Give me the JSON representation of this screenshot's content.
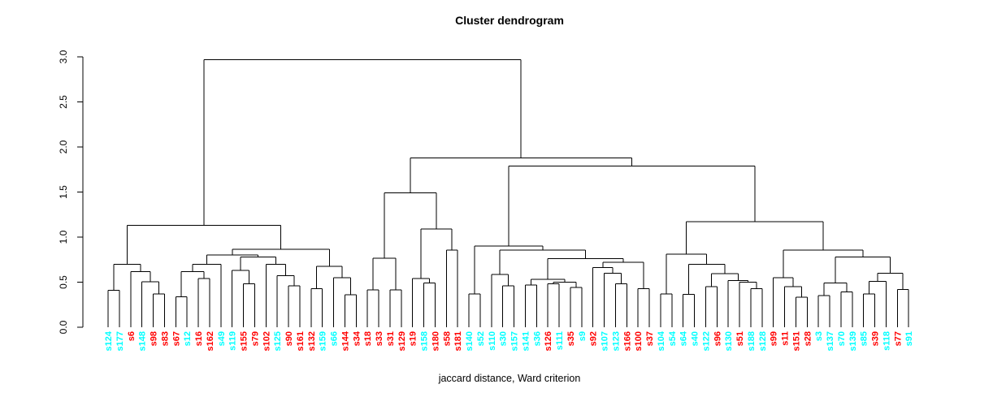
{
  "page": {
    "title": "Cluster dendrogram"
  },
  "chart_data": {
    "type": "dendrogram",
    "title": "Cluster dendrogram",
    "xlabel": "jaccard distance, Ward criterion",
    "ylabel": "",
    "ylim": [
      0.0,
      3.0
    ],
    "yticks": [
      "0.0",
      "0.5",
      "1.0",
      "1.5",
      "2.0",
      "2.5",
      "3.0"
    ],
    "grid": false,
    "line_color": "#000000",
    "group_colors": {
      "group1": "#00FFFF",
      "group2": "#FF0000"
    },
    "leaves": [
      {
        "label": "s124",
        "color": "#00FFFF"
      },
      {
        "label": "s177",
        "color": "#00FFFF"
      },
      {
        "label": "s6",
        "color": "#FF0000"
      },
      {
        "label": "s148",
        "color": "#00FFFF"
      },
      {
        "label": "s98",
        "color": "#FF0000"
      },
      {
        "label": "s83",
        "color": "#FF0000"
      },
      {
        "label": "s67",
        "color": "#FF0000"
      },
      {
        "label": "s12",
        "color": "#00FFFF"
      },
      {
        "label": "s16",
        "color": "#FF0000"
      },
      {
        "label": "s162",
        "color": "#FF0000"
      },
      {
        "label": "s49",
        "color": "#00FFFF"
      },
      {
        "label": "s119",
        "color": "#00FFFF"
      },
      {
        "label": "s155",
        "color": "#FF0000"
      },
      {
        "label": "s79",
        "color": "#FF0000"
      },
      {
        "label": "s102",
        "color": "#FF0000"
      },
      {
        "label": "s125",
        "color": "#00FFFF"
      },
      {
        "label": "s90",
        "color": "#FF0000"
      },
      {
        "label": "s161",
        "color": "#FF0000"
      },
      {
        "label": "s132",
        "color": "#FF0000"
      },
      {
        "label": "s159",
        "color": "#00FFFF"
      },
      {
        "label": "s66",
        "color": "#00FFFF"
      },
      {
        "label": "s144",
        "color": "#FF0000"
      },
      {
        "label": "s34",
        "color": "#FF0000"
      },
      {
        "label": "s18",
        "color": "#FF0000"
      },
      {
        "label": "s33",
        "color": "#FF0000"
      },
      {
        "label": "s31",
        "color": "#FF0000"
      },
      {
        "label": "s129",
        "color": "#FF0000"
      },
      {
        "label": "s19",
        "color": "#FF0000"
      },
      {
        "label": "s158",
        "color": "#00FFFF"
      },
      {
        "label": "s180",
        "color": "#FF0000"
      },
      {
        "label": "s58",
        "color": "#FF0000"
      },
      {
        "label": "s181",
        "color": "#FF0000"
      },
      {
        "label": "s140",
        "color": "#00FFFF"
      },
      {
        "label": "s52",
        "color": "#00FFFF"
      },
      {
        "label": "s110",
        "color": "#00FFFF"
      },
      {
        "label": "s30",
        "color": "#00FFFF"
      },
      {
        "label": "s157",
        "color": "#00FFFF"
      },
      {
        "label": "s141",
        "color": "#00FFFF"
      },
      {
        "label": "s36",
        "color": "#00FFFF"
      },
      {
        "label": "s126",
        "color": "#FF0000"
      },
      {
        "label": "s111",
        "color": "#00FFFF"
      },
      {
        "label": "s35",
        "color": "#FF0000"
      },
      {
        "label": "s9",
        "color": "#00FFFF"
      },
      {
        "label": "s92",
        "color": "#FF0000"
      },
      {
        "label": "s107",
        "color": "#00FFFF"
      },
      {
        "label": "s123",
        "color": "#00FFFF"
      },
      {
        "label": "s166",
        "color": "#FF0000"
      },
      {
        "label": "s100",
        "color": "#FF0000"
      },
      {
        "label": "s37",
        "color": "#FF0000"
      },
      {
        "label": "s104",
        "color": "#00FFFF"
      },
      {
        "label": "s54",
        "color": "#00FFFF"
      },
      {
        "label": "s64",
        "color": "#00FFFF"
      },
      {
        "label": "s40",
        "color": "#00FFFF"
      },
      {
        "label": "s122",
        "color": "#00FFFF"
      },
      {
        "label": "s96",
        "color": "#FF0000"
      },
      {
        "label": "s130",
        "color": "#00FFFF"
      },
      {
        "label": "s51",
        "color": "#FF0000"
      },
      {
        "label": "s188",
        "color": "#00FFFF"
      },
      {
        "label": "s128",
        "color": "#00FFFF"
      },
      {
        "label": "s99",
        "color": "#FF0000"
      },
      {
        "label": "s11",
        "color": "#FF0000"
      },
      {
        "label": "s151",
        "color": "#FF0000"
      },
      {
        "label": "s28",
        "color": "#FF0000"
      },
      {
        "label": "s3",
        "color": "#00FFFF"
      },
      {
        "label": "s137",
        "color": "#00FFFF"
      },
      {
        "label": "s70",
        "color": "#00FFFF"
      },
      {
        "label": "s139",
        "color": "#00FFFF"
      },
      {
        "label": "s85",
        "color": "#00FFFF"
      },
      {
        "label": "s39",
        "color": "#FF0000"
      },
      {
        "label": "s118",
        "color": "#00FFFF"
      },
      {
        "label": "s77",
        "color": "#FF0000"
      },
      {
        "label": "s91",
        "color": "#00FFFF"
      }
    ],
    "tree": {
      "h": 2.97,
      "c": [
        {
          "h": 1.13,
          "c": [
            {
              "h": 0.7,
              "c": [
                {
                  "h": 0.41,
                  "c": [
                    "s124",
                    "s177"
                  ]
                },
                {
                  "h": 0.615,
                  "c": [
                    "s6",
                    {
                      "h": 0.505,
                      "c": [
                        "s148",
                        {
                          "h": 0.37,
                          "c": [
                            "s98",
                            "s83"
                          ]
                        }
                      ]
                    }
                  ]
                }
              ]
            },
            {
              "h": 0.865,
              "c": [
                {
                  "h": 0.8,
                  "c": [
                    {
                      "h": 0.7,
                      "c": [
                        {
                          "h": 0.615,
                          "c": [
                            {
                              "h": 0.34,
                              "c": [
                                "s67",
                                "s12"
                              ]
                            },
                            {
                              "h": 0.54,
                              "c": [
                                "s16",
                                "s162"
                              ]
                            }
                          ]
                        },
                        "s49"
                      ]
                    },
                    {
                      "h": 0.78,
                      "c": [
                        {
                          "h": 0.63,
                          "c": [
                            "s119",
                            {
                              "h": 0.48,
                              "c": [
                                "s155",
                                "s79"
                              ]
                            }
                          ]
                        },
                        {
                          "h": 0.7,
                          "c": [
                            "s102",
                            {
                              "h": 0.57,
                              "c": [
                                "s125",
                                {
                                  "h": 0.46,
                                  "c": [
                                    "s90",
                                    "s161"
                                  ]
                                }
                              ]
                            }
                          ]
                        }
                      ]
                    }
                  ]
                },
                {
                  "h": 0.675,
                  "c": [
                    {
                      "h": 0.43,
                      "c": [
                        "s132",
                        "s159"
                      ]
                    },
                    {
                      "h": 0.55,
                      "c": [
                        "s66",
                        {
                          "h": 0.36,
                          "c": [
                            "s144",
                            "s34"
                          ]
                        }
                      ]
                    }
                  ]
                }
              ]
            }
          ]
        },
        {
          "h": 1.88,
          "c": [
            {
              "h": 1.49,
              "c": [
                {
                  "h": 0.765,
                  "c": [
                    {
                      "h": 0.415,
                      "c": [
                        "s18",
                        "s33"
                      ]
                    },
                    {
                      "h": 0.415,
                      "c": [
                        "s31",
                        "s129"
                      ]
                    }
                  ]
                },
                {
                  "h": 1.09,
                  "c": [
                    {
                      "h": 0.54,
                      "c": [
                        "s19",
                        {
                          "h": 0.49,
                          "c": [
                            "s158",
                            "s180"
                          ]
                        }
                      ]
                    },
                    {
                      "h": 0.855,
                      "c": [
                        "s58",
                        "s181"
                      ]
                    }
                  ]
                }
              ]
            },
            {
              "h": 1.79,
              "c": [
                {
                  "h": 0.9,
                  "c": [
                    {
                      "h": 0.37,
                      "c": [
                        "s140",
                        "s52"
                      ]
                    },
                    {
                      "h": 0.855,
                      "c": [
                        {
                          "h": 0.585,
                          "c": [
                            "s110",
                            {
                              "h": 0.46,
                              "c": [
                                "s30",
                                "s157"
                              ]
                            }
                          ]
                        },
                        {
                          "h": 0.76,
                          "c": [
                            {
                              "h": 0.53,
                              "c": [
                                {
                                  "h": 0.47,
                                  "c": [
                                    "s141",
                                    "s36"
                                  ]
                                },
                                {
                                  "h": 0.5,
                                  "c": [
                                    {
                                      "h": 0.48,
                                      "c": [
                                        "s126",
                                        "s111"
                                      ]
                                    },
                                    {
                                      "h": 0.44,
                                      "c": [
                                        "s35",
                                        "s9"
                                      ]
                                    }
                                  ]
                                }
                              ]
                            },
                            {
                              "h": 0.72,
                              "c": [
                                {
                                  "h": 0.66,
                                  "c": [
                                    "s92",
                                    {
                                      "h": 0.6,
                                      "c": [
                                        "s107",
                                        {
                                          "h": 0.48,
                                          "c": [
                                            "s123",
                                            "s166"
                                          ]
                                        }
                                      ]
                                    }
                                  ]
                                },
                                {
                                  "h": 0.43,
                                  "c": [
                                    "s100",
                                    "s37"
                                  ]
                                }
                              ]
                            }
                          ]
                        }
                      ]
                    }
                  ]
                },
                {
                  "h": 1.17,
                  "c": [
                    {
                      "h": 0.81,
                      "c": [
                        {
                          "h": 0.37,
                          "c": [
                            "s104",
                            "s54"
                          ]
                        },
                        {
                          "h": 0.7,
                          "c": [
                            {
                              "h": 0.365,
                              "c": [
                                "s64",
                                "s40"
                              ]
                            },
                            {
                              "h": 0.595,
                              "c": [
                                {
                                  "h": 0.45,
                                  "c": [
                                    "s122",
                                    "s96"
                                  ]
                                },
                                {
                                  "h": 0.52,
                                  "c": [
                                    "s130",
                                    {
                                      "h": 0.5,
                                      "c": [
                                        "s51",
                                        {
                                          "h": 0.43,
                                          "c": [
                                            "s188",
                                            "s128"
                                          ]
                                        }
                                      ]
                                    }
                                  ]
                                }
                              ]
                            }
                          ]
                        }
                      ]
                    },
                    {
                      "h": 0.858,
                      "c": [
                        {
                          "h": 0.55,
                          "c": [
                            "s99",
                            {
                              "h": 0.45,
                              "c": [
                                "s11",
                                {
                                  "h": 0.335,
                                  "c": [
                                    "s151",
                                    "s28"
                                  ]
                                }
                              ]
                            }
                          ]
                        },
                        {
                          "h": 0.78,
                          "c": [
                            {
                              "h": 0.49,
                              "c": [
                                {
                                  "h": 0.35,
                                  "c": [
                                    "s3",
                                    "s137"
                                  ]
                                },
                                {
                                  "h": 0.39,
                                  "c": [
                                    "s70",
                                    "s139"
                                  ]
                                }
                              ]
                            },
                            {
                              "h": 0.6,
                              "c": [
                                {
                                  "h": 0.51,
                                  "c": [
                                    {
                                      "h": 0.37,
                                      "c": [
                                        "s85",
                                        "s39"
                                      ]
                                    },
                                    "s118"
                                  ]
                                },
                                {
                                  "h": 0.42,
                                  "c": [
                                    "s77",
                                    "s91"
                                  ]
                                }
                              ]
                            }
                          ]
                        }
                      ]
                    }
                  ]
                }
              ]
            }
          ]
        }
      ]
    }
  }
}
